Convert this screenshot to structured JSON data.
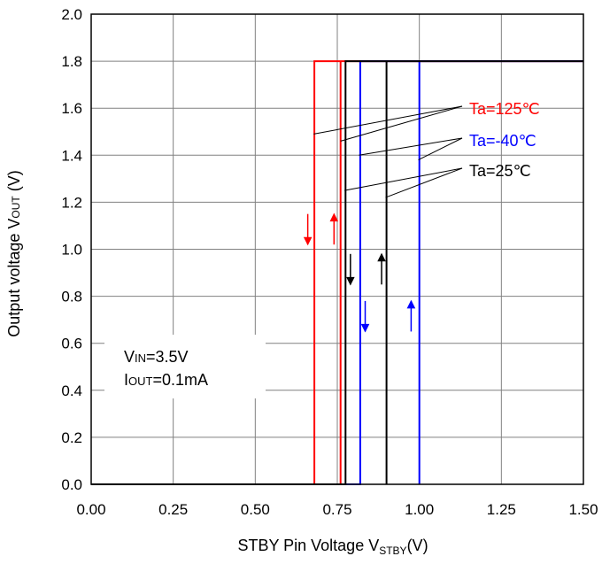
{
  "chart_data": {
    "type": "line",
    "xlabel": "STBY Pin Voltage V",
    "xlabel_sub": "STBY",
    "xlabel_suffix": "(V)",
    "ylabel": "Output voltage V",
    "ylabel_sub": "OUT",
    "ylabel_suffix": " (V)",
    "xlim": [
      0,
      1.5
    ],
    "ylim": [
      0,
      2.0
    ],
    "x_ticks": [
      0,
      0.25,
      0.5,
      0.75,
      1.0,
      1.25,
      1.5
    ],
    "x_tick_labels": [
      "0.00",
      "0.25",
      "0.50",
      "0.75",
      "1.00",
      "1.25",
      "1.50"
    ],
    "y_ticks": [
      0,
      0.2,
      0.4,
      0.6,
      0.8,
      1.0,
      1.2,
      1.4,
      1.6,
      1.8,
      2.0
    ],
    "y_tick_labels": [
      "0.0",
      "0.2",
      "0.4",
      "0.6",
      "0.8",
      "1.0",
      "1.2",
      "1.4",
      "1.6",
      "1.8",
      "2.0"
    ],
    "grid": true,
    "series": [
      {
        "name": "Ta=125℃",
        "color": "#ff0000",
        "off_threshold": 0.68,
        "on_threshold": 0.76,
        "vout_on": 1.8
      },
      {
        "name": "Ta=-40℃",
        "color": "#0000ff",
        "off_threshold": 0.82,
        "on_threshold": 1.0,
        "vout_on": 1.8
      },
      {
        "name": "Ta=25℃",
        "color": "#000000",
        "off_threshold": 0.775,
        "on_threshold": 0.9,
        "vout_on": 1.8
      }
    ],
    "arrows": [
      {
        "series": 0,
        "dir": "down",
        "x": 0.66,
        "y_from": 1.15,
        "y_to": 1.02
      },
      {
        "series": 0,
        "dir": "up",
        "x": 0.74,
        "y_from": 1.02,
        "y_to": 1.15
      },
      {
        "series": 2,
        "dir": "down",
        "x": 0.79,
        "y_from": 0.98,
        "y_to": 0.85
      },
      {
        "series": 2,
        "dir": "up",
        "x": 0.885,
        "y_from": 0.85,
        "y_to": 0.98
      },
      {
        "series": 1,
        "dir": "down",
        "x": 0.835,
        "y_from": 0.78,
        "y_to": 0.65
      },
      {
        "series": 1,
        "dir": "up",
        "x": 0.975,
        "y_from": 0.65,
        "y_to": 0.78
      }
    ],
    "conditions": [
      {
        "main": "V",
        "sub": "IN",
        "rest": "=3.5V"
      },
      {
        "main": "I",
        "sub": "OUT",
        "rest": "=0.1mA"
      }
    ]
  }
}
